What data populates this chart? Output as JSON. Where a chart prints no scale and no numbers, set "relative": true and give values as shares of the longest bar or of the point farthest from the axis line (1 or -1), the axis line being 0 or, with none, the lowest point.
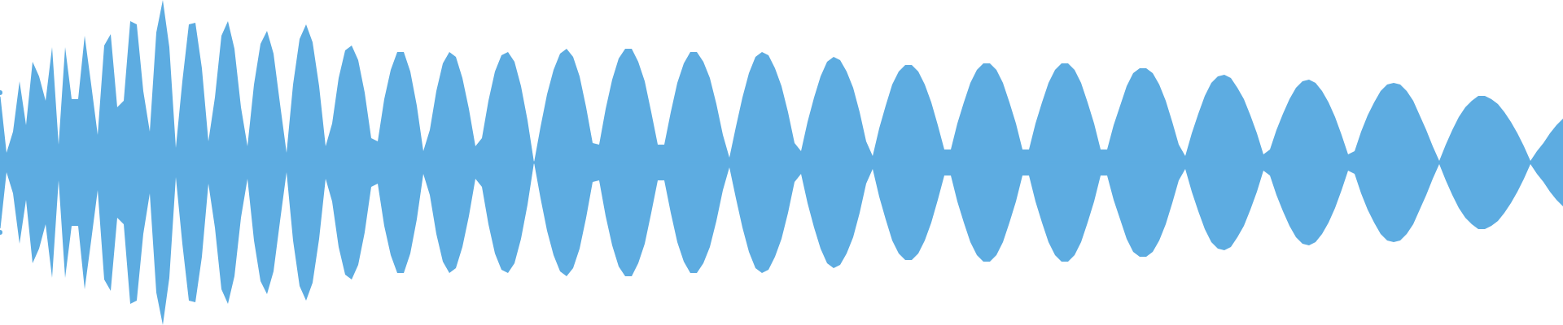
{
  "chart_data": {
    "type": "area",
    "relative": true,
    "ref_lines": [
      {
        "axis": "y",
        "value": 0,
        "color": "#5dace1"
      }
    ],
    "categories": [
      null,
      null,
      null,
      null,
      null,
      null,
      null,
      null,
      null,
      null,
      null,
      null,
      null,
      null,
      null,
      null,
      null,
      null,
      null,
      null,
      null,
      null,
      null,
      null,
      null,
      null,
      null,
      null,
      null,
      null,
      null,
      null,
      null,
      null,
      null,
      null,
      null,
      null,
      null,
      null,
      null,
      null,
      null,
      null,
      null,
      null,
      null,
      null,
      null,
      null,
      null,
      null,
      null,
      null,
      null,
      null,
      null,
      null,
      null,
      null,
      null,
      null,
      null,
      null,
      null,
      null,
      null,
      null,
      null,
      null,
      null,
      null,
      null,
      null,
      null,
      null,
      null,
      null,
      null,
      null,
      null,
      null,
      null,
      null,
      null,
      null,
      null,
      null,
      null,
      null,
      null,
      null,
      null,
      null,
      null,
      null,
      null,
      null,
      null,
      null,
      null,
      null,
      null,
      null,
      null,
      null,
      null,
      null,
      null,
      null,
      null,
      null,
      null,
      null,
      null,
      null,
      null,
      null,
      null,
      null,
      null,
      null,
      null,
      null,
      null,
      null,
      null,
      null,
      null,
      null,
      null,
      null,
      null,
      null,
      null,
      null,
      null,
      null,
      null,
      null,
      null,
      null,
      null,
      null,
      null,
      null,
      null,
      null,
      null,
      null,
      null,
      null,
      null,
      null,
      null,
      null,
      null,
      null,
      null,
      null,
      null,
      null,
      null,
      null,
      null,
      null,
      null,
      null,
      null,
      null,
      null,
      null,
      null,
      null,
      null,
      null,
      null,
      null,
      null,
      null,
      null,
      null,
      null,
      null,
      null,
      null,
      null,
      null,
      null,
      null,
      null,
      null,
      null,
      null,
      null,
      null,
      null,
      null,
      null,
      null,
      null,
      null,
      null,
      null,
      null,
      null,
      null,
      null,
      null,
      null,
      null,
      null,
      null,
      null,
      null,
      null,
      null,
      null,
      null,
      null,
      null,
      null,
      null,
      null,
      null,
      null,
      null,
      null,
      null,
      null,
      null,
      null,
      null,
      null,
      null,
      null,
      null,
      null,
      null,
      null,
      null
    ],
    "series": [
      {
        "color": "#5dace1",
        "values": [
          0.43,
          0.06,
          0.19,
          0.5,
          0.23,
          0.62,
          0.53,
          0.38,
          0.71,
          0.11,
          0.71,
          0.39,
          0.39,
          0.78,
          0.48,
          0.17,
          0.72,
          0.79,
          0.34,
          0.38,
          0.87,
          0.85,
          0.44,
          0.19,
          0.8,
          1,
          0.71,
          0.09,
          0.5,
          0.85,
          0.86,
          0.58,
          0.13,
          0.4,
          0.78,
          0.87,
          0.7,
          0.34,
          0.1,
          0.48,
          0.73,
          0.81,
          0.67,
          0.36,
          0.06,
          0.48,
          0.76,
          0.85,
          0.74,
          0.47,
          0.1,
          0.24,
          0.52,
          0.69,
          0.72,
          0.63,
          0.43,
          0.15,
          0.13,
          0.39,
          0.57,
          0.68,
          0.68,
          0.56,
          0.35,
          0.07,
          0.2,
          0.44,
          0.61,
          0.68,
          0.65,
          0.52,
          0.33,
          0.1,
          0.15,
          0.38,
          0.56,
          0.66,
          0.68,
          0.62,
          0.47,
          0.26,
          0,
          0.22,
          0.42,
          0.57,
          0.67,
          0.7,
          0.65,
          0.53,
          0.34,
          0.12,
          0.11,
          0.33,
          0.51,
          0.64,
          0.7,
          0.7,
          0.62,
          0.5,
          0.31,
          0.11,
          0.11,
          0.31,
          0.49,
          0.61,
          0.68,
          0.68,
          0.62,
          0.52,
          0.36,
          0.17,
          0.03,
          0.22,
          0.4,
          0.55,
          0.65,
          0.68,
          0.66,
          0.58,
          0.47,
          0.31,
          0.12,
          0.07,
          0.25,
          0.4,
          0.53,
          0.62,
          0.65,
          0.63,
          0.56,
          0.46,
          0.31,
          0.13,
          0.04,
          0.21,
          0.35,
          0.48,
          0.56,
          0.6,
          0.6,
          0.56,
          0.48,
          0.37,
          0.23,
          0.08,
          0.08,
          0.24,
          0.37,
          0.49,
          0.57,
          0.61,
          0.61,
          0.57,
          0.49,
          0.37,
          0.24,
          0.08,
          0.08,
          0.24,
          0.37,
          0.49,
          0.57,
          0.61,
          0.61,
          0.57,
          0.49,
          0.37,
          0.24,
          0.08,
          0.08,
          0.23,
          0.35,
          0.47,
          0.55,
          0.58,
          0.58,
          0.55,
          0.48,
          0.38,
          0.25,
          0.11,
          0.04,
          0.18,
          0.3,
          0.41,
          0.49,
          0.53,
          0.54,
          0.52,
          0.46,
          0.39,
          0.29,
          0.18,
          0.05,
          0.08,
          0.2,
          0.3,
          0.39,
          0.46,
          0.5,
          0.51,
          0.49,
          0.44,
          0.37,
          0.28,
          0.17,
          0.05,
          0.07,
          0.19,
          0.29,
          0.37,
          0.44,
          0.48,
          0.49,
          0.48,
          0.44,
          0.38,
          0.29,
          0.2,
          0.1,
          0.01,
          0.11,
          0.2,
          0.28,
          0.34,
          0.38,
          0.41,
          0.41,
          0.39,
          0.36,
          0.31,
          0.25,
          0.18,
          0.1,
          0.01,
          0.07,
          0.12,
          0.18,
          0.23,
          0.27
        ]
      },
      {
        "color": "#5dace1",
        "values": [
          -0.43,
          -0.06,
          -0.19,
          -0.5,
          -0.23,
          -0.62,
          -0.53,
          -0.38,
          -0.71,
          -0.11,
          -0.71,
          -0.39,
          -0.39,
          -0.78,
          -0.48,
          -0.17,
          -0.72,
          -0.79,
          -0.34,
          -0.38,
          -0.87,
          -0.85,
          -0.44,
          -0.19,
          -0.8,
          -1,
          -0.71,
          -0.09,
          -0.5,
          -0.85,
          -0.86,
          -0.58,
          -0.13,
          -0.4,
          -0.78,
          -0.87,
          -0.7,
          -0.34,
          -0.1,
          -0.48,
          -0.73,
          -0.81,
          -0.67,
          -0.36,
          -0.06,
          -0.48,
          -0.76,
          -0.85,
          -0.74,
          -0.47,
          -0.1,
          -0.24,
          -0.52,
          -0.69,
          -0.72,
          -0.63,
          -0.43,
          -0.15,
          -0.13,
          -0.39,
          -0.57,
          -0.68,
          -0.68,
          -0.56,
          -0.35,
          -0.07,
          -0.2,
          -0.44,
          -0.61,
          -0.68,
          -0.65,
          -0.52,
          -0.33,
          -0.1,
          -0.15,
          -0.38,
          -0.56,
          -0.66,
          -0.68,
          -0.62,
          -0.47,
          -0.26,
          0,
          -0.22,
          -0.42,
          -0.57,
          -0.67,
          -0.7,
          -0.65,
          -0.53,
          -0.34,
          -0.12,
          -0.11,
          -0.33,
          -0.51,
          -0.64,
          -0.7,
          -0.7,
          -0.62,
          -0.5,
          -0.31,
          -0.11,
          -0.11,
          -0.31,
          -0.49,
          -0.61,
          -0.68,
          -0.68,
          -0.62,
          -0.52,
          -0.36,
          -0.17,
          -0.03,
          -0.22,
          -0.4,
          -0.55,
          -0.65,
          -0.68,
          -0.66,
          -0.58,
          -0.47,
          -0.31,
          -0.12,
          -0.07,
          -0.25,
          -0.4,
          -0.53,
          -0.62,
          -0.65,
          -0.63,
          -0.56,
          -0.46,
          -0.31,
          -0.13,
          -0.04,
          -0.21,
          -0.35,
          -0.48,
          -0.56,
          -0.6,
          -0.6,
          -0.56,
          -0.48,
          -0.37,
          -0.23,
          -0.08,
          -0.08,
          -0.24,
          -0.37,
          -0.49,
          -0.57,
          -0.61,
          -0.61,
          -0.57,
          -0.49,
          -0.37,
          -0.24,
          -0.08,
          -0.08,
          -0.24,
          -0.37,
          -0.49,
          -0.57,
          -0.61,
          -0.61,
          -0.57,
          -0.49,
          -0.37,
          -0.24,
          -0.08,
          -0.08,
          -0.23,
          -0.35,
          -0.47,
          -0.55,
          -0.58,
          -0.58,
          -0.55,
          -0.48,
          -0.38,
          -0.25,
          -0.11,
          -0.04,
          -0.18,
          -0.3,
          -0.41,
          -0.49,
          -0.53,
          -0.54,
          -0.52,
          -0.46,
          -0.39,
          -0.29,
          -0.18,
          -0.05,
          -0.08,
          -0.2,
          -0.3,
          -0.39,
          -0.46,
          -0.5,
          -0.51,
          -0.49,
          -0.44,
          -0.37,
          -0.28,
          -0.17,
          -0.05,
          -0.07,
          -0.19,
          -0.29,
          -0.37,
          -0.44,
          -0.48,
          -0.49,
          -0.48,
          -0.44,
          -0.38,
          -0.29,
          -0.2,
          -0.1,
          -0.01,
          -0.11,
          -0.2,
          -0.28,
          -0.34,
          -0.38,
          -0.41,
          -0.41,
          -0.39,
          -0.36,
          -0.31,
          -0.25,
          -0.18,
          -0.1,
          -0.01,
          -0.07,
          -0.12,
          -0.18,
          -0.23,
          -0.27
        ]
      }
    ]
  }
}
